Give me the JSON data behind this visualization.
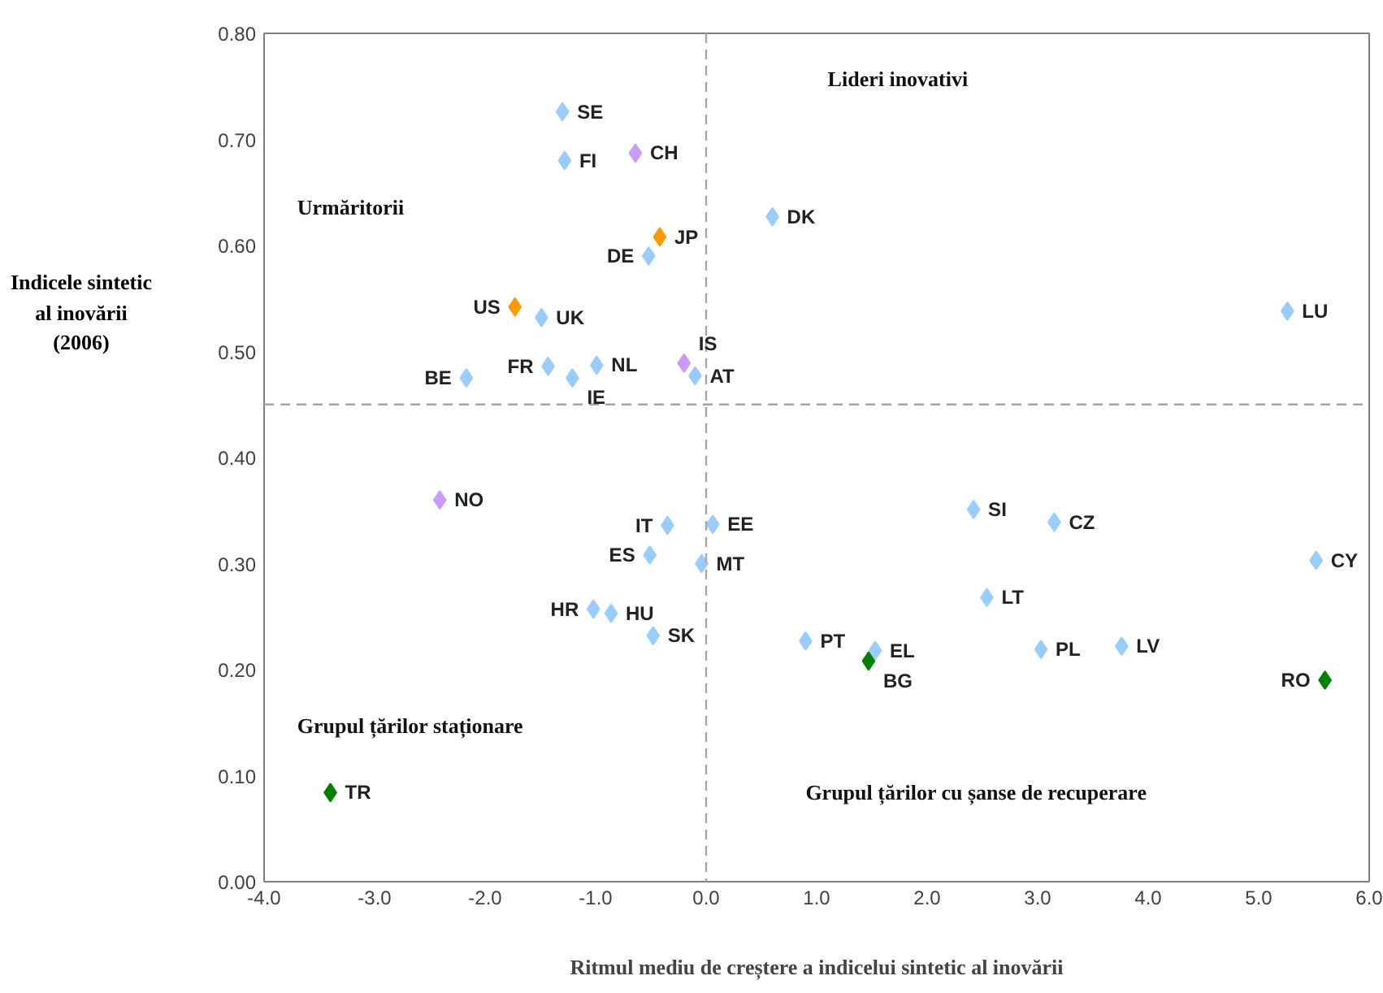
{
  "chart_data": {
    "type": "scatter",
    "xlabel": "Ritmul mediu de creștere a indicelui sintetic al inovării",
    "ylabel": "Indicele sintetic al inovării (2006)",
    "xlim": [
      -4.0,
      6.0
    ],
    "xticks": [
      {
        "value": -4,
        "label": "-4.0"
      },
      {
        "value": -3,
        "label": "-3.0"
      },
      {
        "value": -2,
        "label": "-2.0"
      },
      {
        "value": -1,
        "label": "-1.0"
      },
      {
        "value": 0,
        "label": "0.0"
      },
      {
        "value": 1,
        "label": "1.0"
      },
      {
        "value": 2,
        "label": "2.0"
      },
      {
        "value": 3,
        "label": "3.0"
      },
      {
        "value": 4,
        "label": "4.0"
      },
      {
        "value": 5,
        "label": "5.0"
      },
      {
        "value": 6,
        "label": "6.0"
      }
    ],
    "ylim": [
      0,
      0.8
    ],
    "yticks": [
      {
        "value": 0,
        "label": "0.00"
      },
      {
        "value": 0.1,
        "label": "0.10"
      },
      {
        "value": 0.2,
        "label": "0.20"
      },
      {
        "value": 0.3,
        "label": "0.30"
      },
      {
        "value": 0.4,
        "label": "0.40"
      },
      {
        "value": 0.5,
        "label": "0.50"
      },
      {
        "value": 0.6,
        "label": "0.60"
      },
      {
        "value": 0.7,
        "label": "0.70"
      },
      {
        "value": 0.8,
        "label": "0.80"
      }
    ],
    "marker": "diamond",
    "grid": false,
    "series": [
      {
        "color": "#99ccff",
        "x": [
          -1.3,
          -1.28,
          0.6,
          -0.52,
          -1.49,
          -1.43,
          -0.99,
          -1.21,
          -2.17,
          -0.1,
          -0.35,
          0.06,
          -0.51,
          -0.04,
          -1.02,
          -0.86,
          -0.48,
          0.9,
          1.53,
          2.42,
          3.15,
          2.54,
          3.03,
          3.76,
          5.52,
          5.26
        ],
        "values": [
          0.726,
          0.68,
          0.627,
          0.59,
          0.532,
          0.486,
          0.487,
          0.475,
          0.475,
          0.477,
          0.336,
          0.337,
          0.308,
          0.3,
          0.257,
          0.253,
          0.232,
          0.227,
          0.218,
          0.351,
          0.339,
          0.268,
          0.219,
          0.222,
          0.303,
          0.538
        ]
      },
      {
        "color": "#cc99ff",
        "x": [
          -0.64,
          -0.2,
          -2.41
        ],
        "values": [
          0.687,
          0.489,
          0.36
        ]
      },
      {
        "color": "#ff9900",
        "x": [
          -0.42,
          -1.73
        ],
        "values": [
          0.608,
          0.542
        ]
      },
      {
        "color": "#008000",
        "x": [
          1.47,
          5.6,
          -3.4
        ],
        "values": [
          0.208,
          0.19,
          0.084
        ]
      }
    ],
    "ref_lines": [
      {
        "axis": "x",
        "value": 0,
        "color": "#a6a6a6",
        "line_style": "dashed"
      },
      {
        "axis": "y",
        "value": 0.45,
        "color": "#a6a6a6",
        "line_style": "dashed"
      }
    ],
    "annotations": [
      "Lideri inovativi",
      "Urmăritorii",
      "Grupul țărilor staționare",
      "Grupul țărilor cu șanse de recuperare",
      {
        "text": "SE",
        "x": -1.3,
        "y": 0.726
      },
      {
        "text": "FI",
        "x": -1.28,
        "y": 0.68
      },
      {
        "text": "DK",
        "x": 0.6,
        "y": 0.627
      },
      {
        "text": "DE",
        "x": -0.52,
        "y": 0.59
      },
      {
        "text": "UK",
        "x": -1.49,
        "y": 0.532
      },
      {
        "text": "FR",
        "x": -1.43,
        "y": 0.486
      },
      {
        "text": "NL",
        "x": -0.99,
        "y": 0.487
      },
      {
        "text": "IE",
        "x": -1.21,
        "y": 0.475
      },
      {
        "text": "BE",
        "x": -2.17,
        "y": 0.475
      },
      {
        "text": "AT",
        "x": -0.1,
        "y": 0.477
      },
      {
        "text": "IT",
        "x": -0.35,
        "y": 0.336
      },
      {
        "text": "EE",
        "x": 0.06,
        "y": 0.337
      },
      {
        "text": "ES",
        "x": -0.51,
        "y": 0.308
      },
      {
        "text": "MT",
        "x": -0.04,
        "y": 0.3
      },
      {
        "text": "HR",
        "x": -1.02,
        "y": 0.257
      },
      {
        "text": "HU",
        "x": -0.86,
        "y": 0.253
      },
      {
        "text": "SK",
        "x": -0.48,
        "y": 0.232
      },
      {
        "text": "PT",
        "x": 0.9,
        "y": 0.227
      },
      {
        "text": "EL",
        "x": 1.53,
        "y": 0.218
      },
      {
        "text": "SI",
        "x": 2.42,
        "y": 0.351
      },
      {
        "text": "CZ",
        "x": 3.15,
        "y": 0.339
      },
      {
        "text": "LT",
        "x": 2.54,
        "y": 0.268
      },
      {
        "text": "PL",
        "x": 3.03,
        "y": 0.219
      },
      {
        "text": "LV",
        "x": 3.76,
        "y": 0.222
      },
      {
        "text": "CY",
        "x": 5.52,
        "y": 0.303
      },
      {
        "text": "LU",
        "x": 5.26,
        "y": 0.538
      },
      {
        "text": "CH",
        "x": -0.64,
        "y": 0.687
      },
      {
        "text": "IS",
        "x": -0.2,
        "y": 0.489
      },
      {
        "text": "NO",
        "x": -2.41,
        "y": 0.36
      },
      {
        "text": "JP",
        "x": -0.42,
        "y": 0.608
      },
      {
        "text": "US",
        "x": -1.73,
        "y": 0.542
      },
      {
        "text": "BG",
        "x": 1.47,
        "y": 0.208
      },
      {
        "text": "RO",
        "x": 5.6,
        "y": 0.19
      },
      {
        "text": "TR",
        "x": -3.4,
        "y": 0.084
      }
    ]
  }
}
